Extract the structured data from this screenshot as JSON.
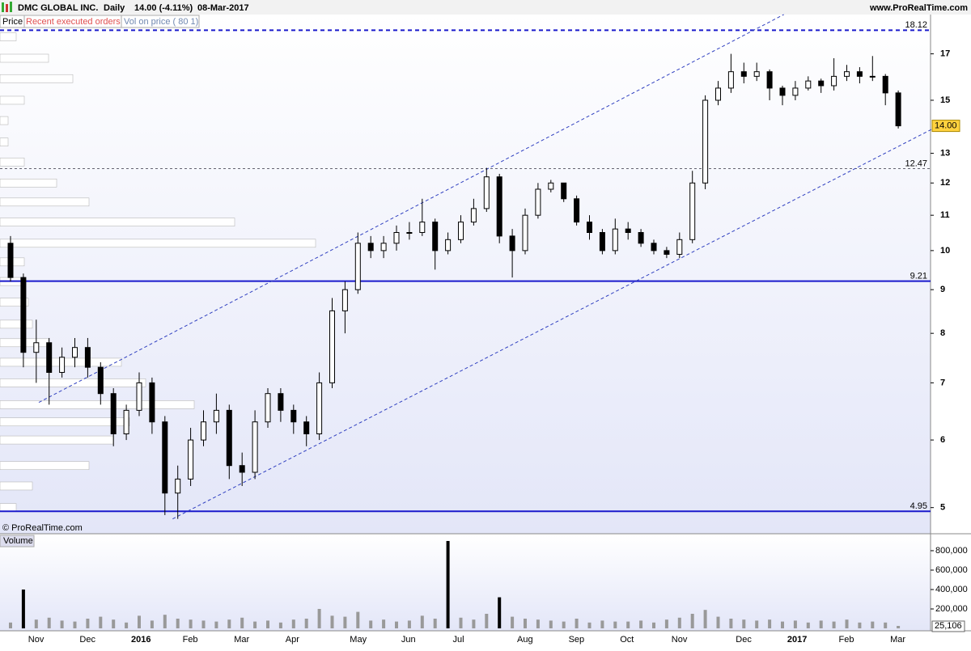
{
  "header": {
    "title": "DMC GLOBAL INC.",
    "period": "Daily",
    "quote": "14.00 (-4.11%)",
    "date": "08-Mar-2017",
    "site": "www.ProRealTime.com",
    "tabs": [
      "Price",
      "Recent executed orders",
      "Vol on price ( 80 1)"
    ],
    "copyright": "© ProRealTime.com"
  },
  "chart_data": [
    {
      "type": "candlestick",
      "log_scale": true,
      "ylim": [
        4.68,
        18.9
      ],
      "yticks": [
        5,
        6,
        7,
        8,
        9,
        10,
        11,
        12,
        13,
        15,
        17
      ],
      "categories": [
        null,
        null,
        "Nov",
        null,
        null,
        null,
        "Dec",
        null,
        null,
        null,
        "2016",
        null,
        null,
        null,
        "Feb",
        null,
        null,
        null,
        "Mar",
        null,
        null,
        null,
        "Apr",
        null,
        null,
        null,
        null,
        "May",
        null,
        null,
        null,
        "Jun",
        null,
        null,
        null,
        "Jul",
        null,
        null,
        null,
        null,
        "Aug",
        null,
        null,
        null,
        "Sep",
        null,
        null,
        null,
        "Oct",
        null,
        null,
        null,
        "Nov",
        null,
        null,
        null,
        null,
        "Dec",
        null,
        null,
        null,
        "2017",
        null,
        null,
        null,
        "Feb",
        null,
        null,
        null,
        "Mar"
      ],
      "open": [
        10.2,
        9.3,
        7.6,
        7.8,
        7.2,
        7.5,
        7.7,
        7.3,
        6.8,
        6.1,
        6.5,
        7.0,
        6.3,
        5.2,
        5.4,
        6.0,
        6.3,
        6.5,
        5.6,
        5.5,
        6.3,
        6.8,
        6.5,
        6.3,
        6.1,
        7.0,
        8.5,
        9.0,
        10.2,
        10.0,
        10.2,
        10.5,
        10.5,
        10.8,
        10.0,
        10.3,
        10.8,
        11.2,
        12.2,
        10.4,
        10.0,
        11.0,
        11.8,
        12.0,
        11.5,
        10.8,
        10.5,
        10.0,
        10.6,
        10.5,
        10.2,
        10.0,
        9.9,
        10.3,
        12.0,
        15.0,
        15.5,
        16.2,
        16.0,
        16.2,
        15.5,
        15.2,
        15.5,
        15.8,
        15.6,
        16.0,
        16.2,
        16.0,
        16.0,
        15.3
      ],
      "high": [
        10.4,
        9.4,
        8.3,
        7.9,
        7.7,
        7.9,
        7.9,
        7.4,
        6.9,
        6.6,
        7.2,
        7.1,
        6.4,
        5.6,
        6.2,
        6.5,
        6.8,
        6.6,
        5.8,
        6.5,
        6.9,
        6.9,
        6.6,
        6.4,
        7.2,
        8.8,
        9.2,
        10.5,
        10.4,
        10.4,
        10.7,
        10.8,
        11.5,
        10.9,
        10.5,
        11.0,
        11.5,
        12.5,
        12.3,
        10.6,
        11.2,
        12.0,
        12.1,
        12.0,
        11.6,
        11.0,
        10.6,
        10.9,
        10.8,
        10.6,
        10.3,
        10.1,
        10.5,
        12.4,
        15.2,
        15.8,
        17.0,
        16.6,
        16.6,
        16.3,
        15.6,
        15.8,
        16.0,
        15.9,
        16.8,
        16.5,
        16.4,
        16.9,
        16.1,
        15.4
      ],
      "low": [
        9.2,
        7.3,
        7.0,
        6.6,
        7.1,
        7.3,
        7.1,
        6.6,
        5.9,
        6.0,
        6.4,
        6.1,
        4.9,
        4.85,
        5.3,
        5.9,
        6.1,
        5.4,
        5.3,
        5.4,
        6.2,
        6.3,
        6.1,
        5.9,
        6.0,
        6.9,
        8.0,
        8.9,
        9.8,
        9.8,
        10.0,
        10.3,
        10.4,
        9.5,
        9.9,
        10.2,
        10.7,
        11.1,
        10.2,
        9.3,
        9.9,
        10.9,
        11.7,
        11.4,
        10.7,
        10.3,
        9.9,
        9.9,
        10.3,
        10.1,
        9.9,
        9.8,
        9.8,
        10.2,
        11.8,
        14.8,
        15.3,
        15.7,
        15.8,
        15.0,
        14.8,
        15.0,
        15.4,
        15.3,
        15.4,
        15.8,
        15.7,
        15.8,
        14.8,
        13.9
      ],
      "close": [
        9.3,
        7.6,
        7.8,
        7.2,
        7.5,
        7.7,
        7.3,
        6.8,
        6.1,
        6.5,
        7.0,
        6.3,
        5.2,
        5.4,
        6.0,
        6.3,
        6.5,
        5.6,
        5.5,
        6.3,
        6.8,
        6.5,
        6.3,
        6.1,
        7.0,
        8.5,
        9.0,
        10.2,
        10.0,
        10.2,
        10.5,
        10.5,
        10.8,
        10.0,
        10.3,
        10.8,
        11.2,
        12.2,
        10.4,
        10.0,
        11.0,
        11.8,
        12.0,
        11.5,
        10.8,
        10.5,
        10.0,
        10.6,
        10.5,
        10.2,
        10.0,
        9.9,
        10.3,
        12.0,
        15.0,
        15.5,
        16.2,
        16.0,
        16.2,
        15.5,
        15.2,
        15.5,
        15.8,
        15.6,
        16.0,
        16.2,
        16.0,
        16.0,
        15.3,
        14.0
      ],
      "last_price": {
        "value": 14,
        "label": "14.00"
      },
      "levels": [
        {
          "value": 18.12,
          "style": "dashed-bold"
        },
        {
          "value": 12.47,
          "style": "dashed"
        },
        {
          "value": 9.21,
          "style": "solid"
        },
        {
          "value": 4.95,
          "style": "solid"
        }
      ],
      "channel": [
        {
          "from": [
            2.2,
            6.64
          ],
          "to": [
            60.1,
            18.9
          ]
        },
        {
          "from": [
            12.6,
            4.85
          ],
          "to": [
            71.6,
            13.87
          ]
        }
      ],
      "profile": {
        "levels": [
          5.0,
          5.3,
          5.6,
          6.0,
          6.3,
          6.6,
          7.0,
          7.4,
          7.8,
          8.2,
          8.7,
          9.2,
          9.7,
          10.2,
          10.8,
          11.4,
          12.0,
          12.7,
          13.4,
          14.2,
          15.0,
          15.9,
          16.8,
          17.8
        ],
        "values": [
          20,
          40,
          110,
          140,
          160,
          240,
          180,
          150,
          60,
          40,
          35,
          30,
          30,
          390,
          290,
          110,
          70,
          30,
          10,
          10,
          30,
          90,
          60,
          20
        ]
      }
    },
    {
      "type": "bar",
      "title": "Volume",
      "ylim": [
        0,
        958000
      ],
      "yticks": [
        {
          "value": 200000,
          "label": "200,000"
        },
        {
          "value": 400000,
          "label": "400,000"
        },
        {
          "value": 600000,
          "label": "600,000"
        },
        {
          "value": 800000,
          "label": "800,000"
        }
      ],
      "values": [
        60000,
        400000,
        90000,
        110000,
        80000,
        70000,
        100000,
        120000,
        90000,
        60000,
        130000,
        80000,
        140000,
        100000,
        90000,
        80000,
        70000,
        90000,
        110000,
        70000,
        80000,
        60000,
        90000,
        100000,
        200000,
        130000,
        120000,
        170000,
        80000,
        90000,
        70000,
        80000,
        130000,
        100000,
        900000,
        110000,
        90000,
        150000,
        320000,
        120000,
        100000,
        90000,
        80000,
        70000,
        100000,
        60000,
        80000,
        70000,
        70000,
        80000,
        60000,
        90000,
        110000,
        150000,
        190000,
        120000,
        100000,
        90000,
        80000,
        90000,
        70000,
        80000,
        60000,
        80000,
        70000,
        90000,
        60000,
        70000,
        60000,
        25106
      ],
      "last_value": {
        "value": 25106,
        "label": "25,106"
      }
    }
  ]
}
